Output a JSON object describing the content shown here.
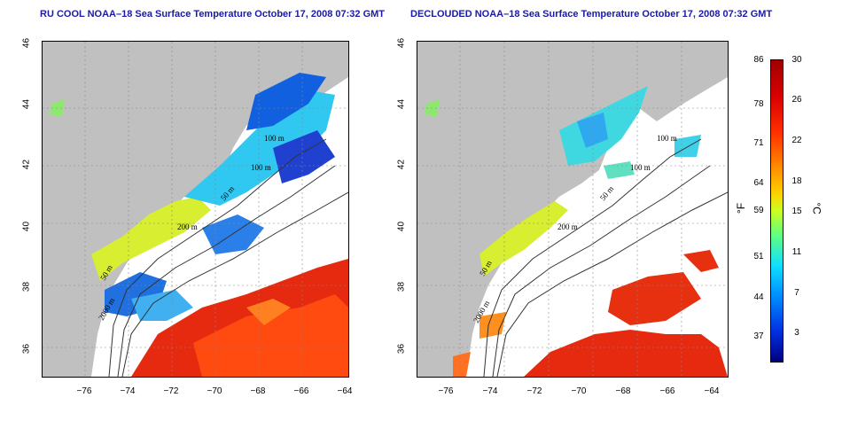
{
  "left_panel": {
    "title": "RU COOL NOAA–18 Sea Surface Temperature October 17, 2008 07:32 GMT",
    "contour_labels": [
      "100 m",
      "100 m",
      "200 m",
      "50 m",
      "2000 m",
      "50 m"
    ]
  },
  "right_panel": {
    "title": "DECLOUDED NOAA–18 Sea Surface Temperature October 17, 2008 07:32 GMT",
    "contour_labels": [
      "100 m",
      "100 m",
      "200 m",
      "50 m",
      "2000 m",
      "50 m"
    ]
  },
  "x_ticks": [
    "−76",
    "−74",
    "−72",
    "−70",
    "−68",
    "−66",
    "−64"
  ],
  "y_ticks": [
    "46",
    "44",
    "42",
    "40",
    "38",
    "36"
  ],
  "colorbar": {
    "fahrenheit_label": "°F",
    "celsius_label": "°C",
    "fahrenheit_ticks": [
      "86",
      "78",
      "71",
      "64",
      "59",
      "51",
      "44",
      "37"
    ],
    "celsius_ticks": [
      "30",
      "26",
      "22",
      "18",
      "15",
      "11",
      "7",
      "3"
    ]
  },
  "colors": {
    "land": "#c0c0c0",
    "cloud": "#ffffff",
    "title": "#1a1aa6"
  }
}
